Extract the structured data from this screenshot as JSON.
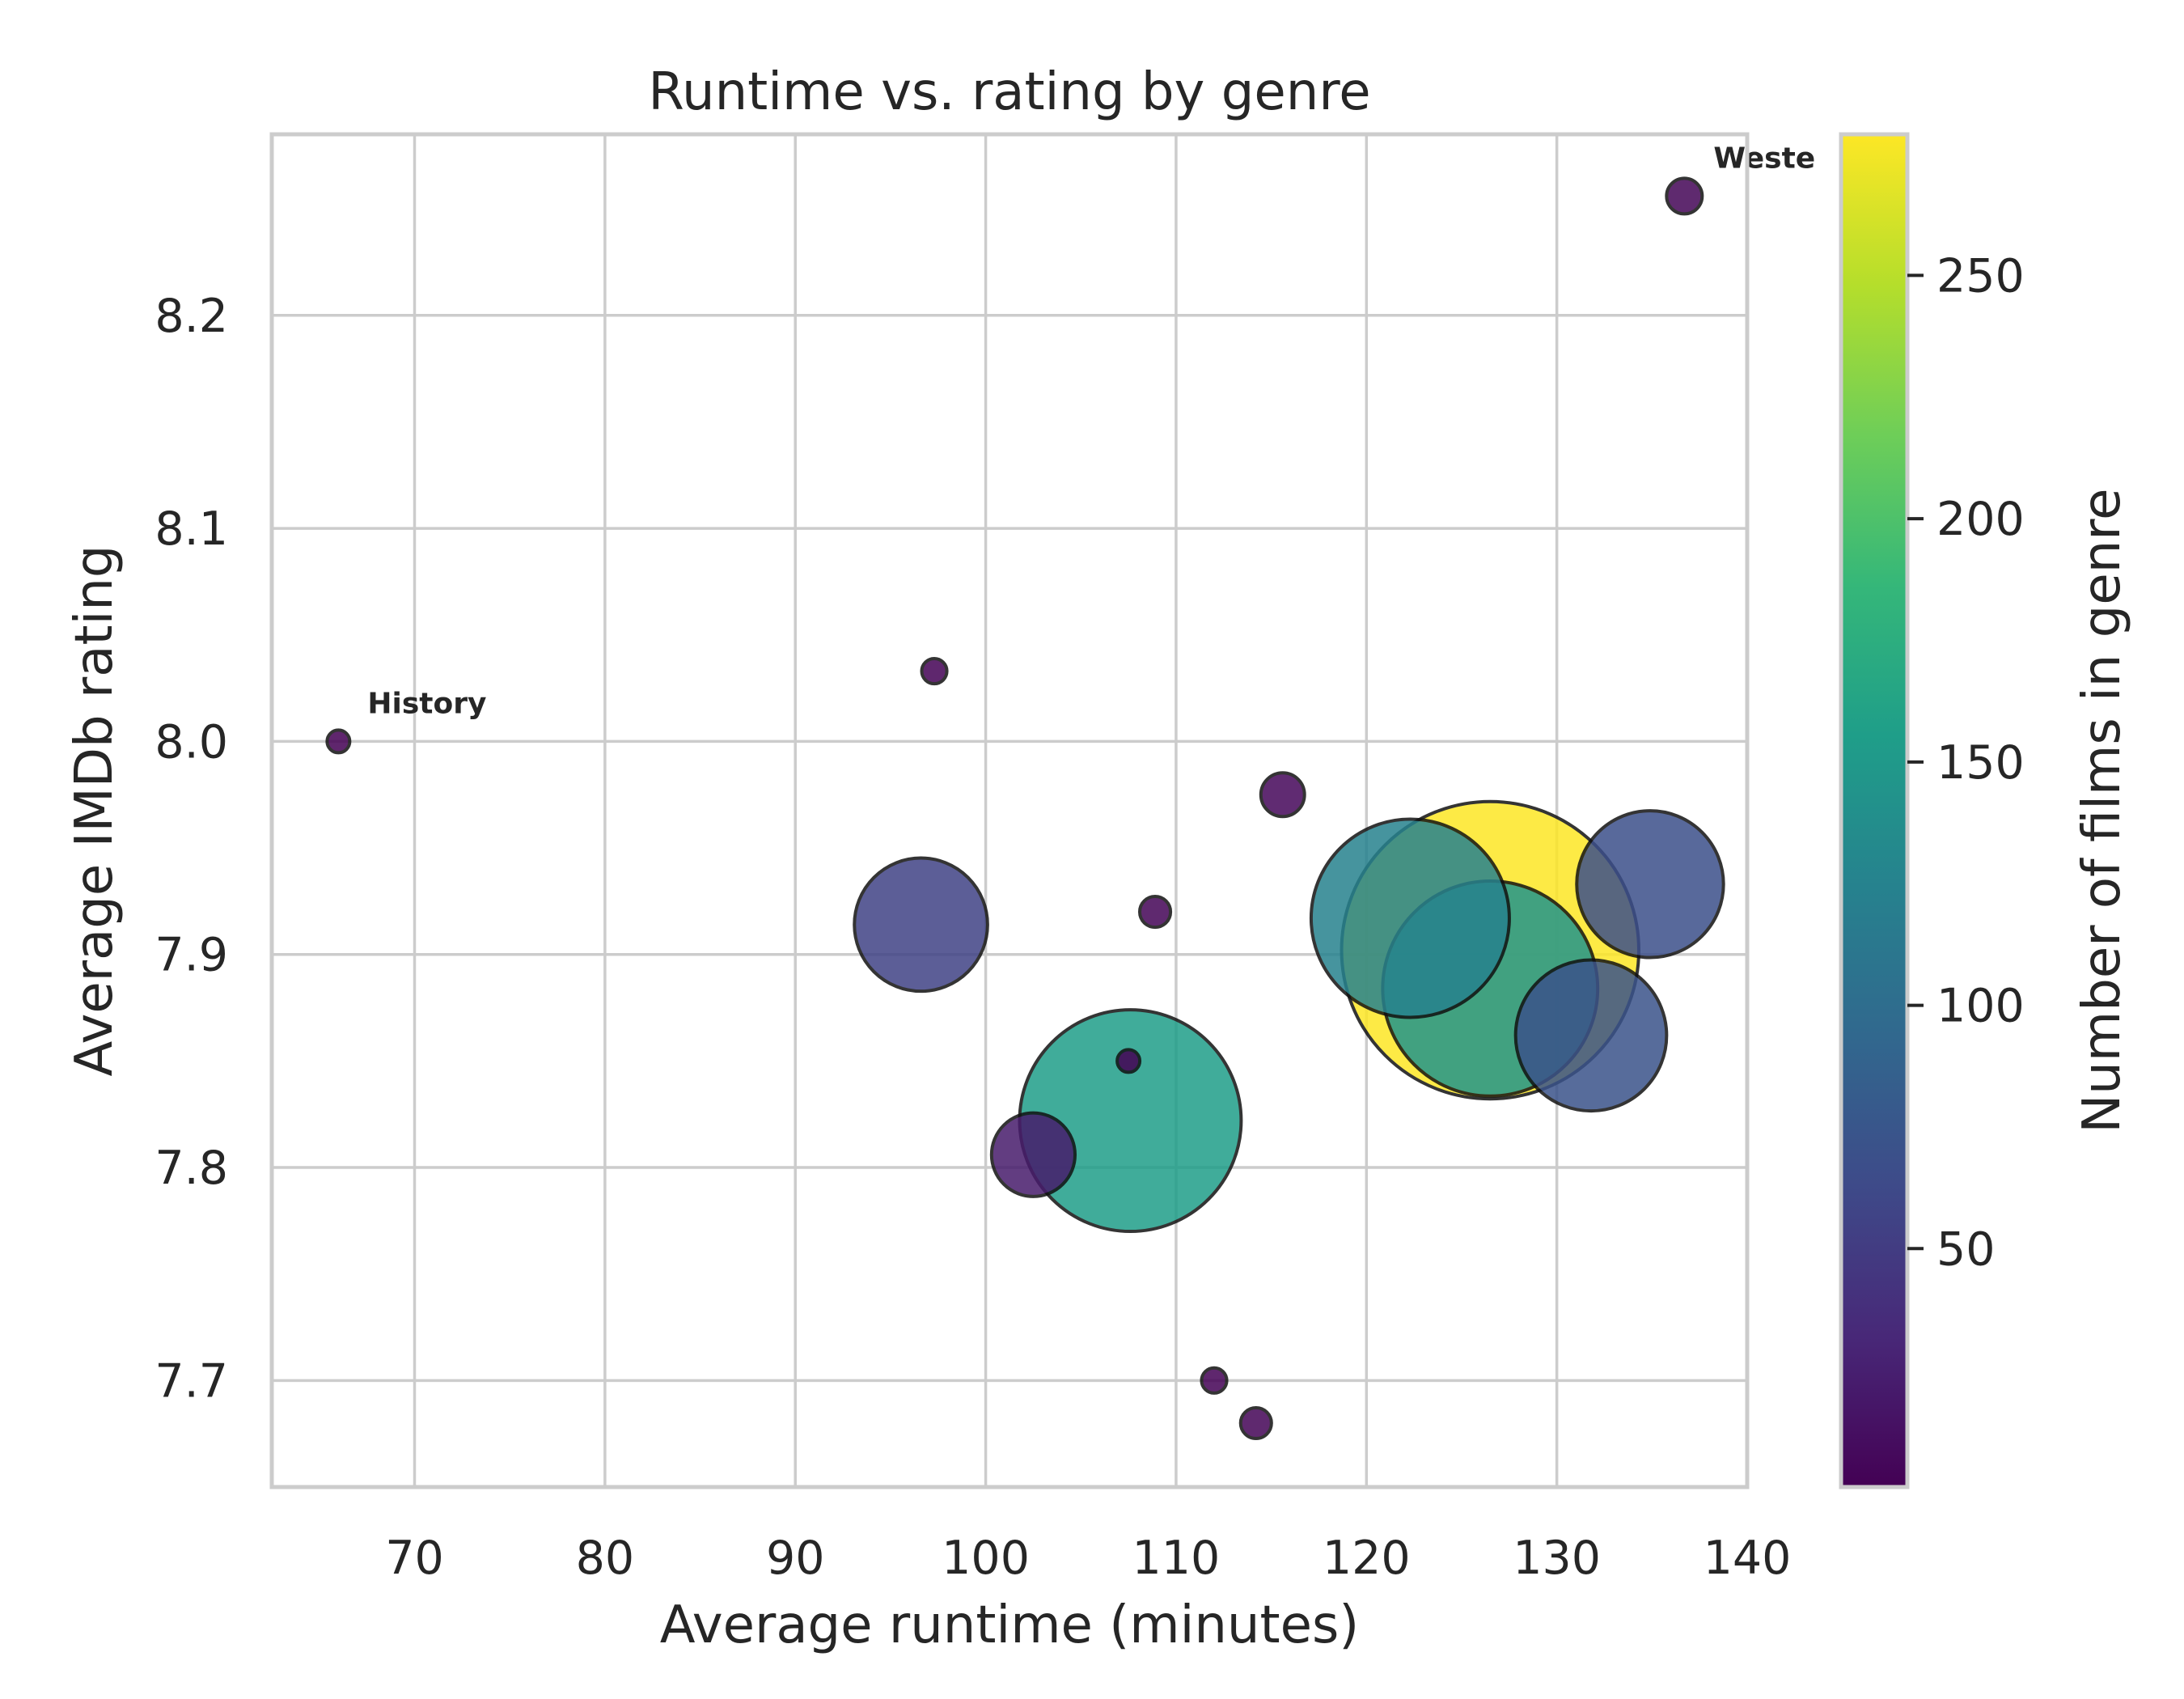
{
  "chart_data": {
    "type": "scatter",
    "title": "Runtime vs. rating by genre",
    "xlabel": "Average runtime (minutes)",
    "ylabel": "Average IMDb rating",
    "xlim": [
      62.5,
      140
    ],
    "ylim": [
      7.65,
      8.285
    ],
    "x_ticks": [
      70,
      80,
      90,
      100,
      110,
      120,
      130,
      140
    ],
    "y_ticks": [
      7.7,
      7.8,
      7.9,
      8.0,
      8.1,
      8.2
    ],
    "grid": true,
    "size_encoding": "Number of films in genre",
    "colorbar": {
      "label": "Number of films in genre",
      "colormap": "viridis",
      "range": [
        1,
        279
      ],
      "ticks": [
        50,
        100,
        150,
        200,
        250
      ]
    },
    "points": [
      {
        "x": 66.0,
        "y": 8.0,
        "count": 1,
        "label": "History"
      },
      {
        "x": 97.3,
        "y": 8.033,
        "count": 2
      },
      {
        "x": 96.6,
        "y": 7.914,
        "count": 56
      },
      {
        "x": 102.5,
        "y": 7.806,
        "count": 22
      },
      {
        "x": 107.5,
        "y": 7.85,
        "count": 1
      },
      {
        "x": 107.6,
        "y": 7.822,
        "count": 155
      },
      {
        "x": 108.9,
        "y": 7.92,
        "count": 3
      },
      {
        "x": 112.0,
        "y": 7.7,
        "count": 2
      },
      {
        "x": 114.2,
        "y": 7.68,
        "count": 3
      },
      {
        "x": 115.6,
        "y": 7.975,
        "count": 6
      },
      {
        "x": 122.3,
        "y": 7.917,
        "count": 124
      },
      {
        "x": 126.5,
        "y": 7.902,
        "count": 279
      },
      {
        "x": 126.5,
        "y": 7.884,
        "count": 146
      },
      {
        "x": 131.8,
        "y": 7.862,
        "count": 72
      },
      {
        "x": 134.9,
        "y": 7.933,
        "count": 68
      },
      {
        "x": 136.7,
        "y": 8.256,
        "count": 4,
        "label": "Weste"
      }
    ],
    "annotation_colors": {
      "History": "#8b0000",
      "Weste": "#00008b"
    }
  }
}
